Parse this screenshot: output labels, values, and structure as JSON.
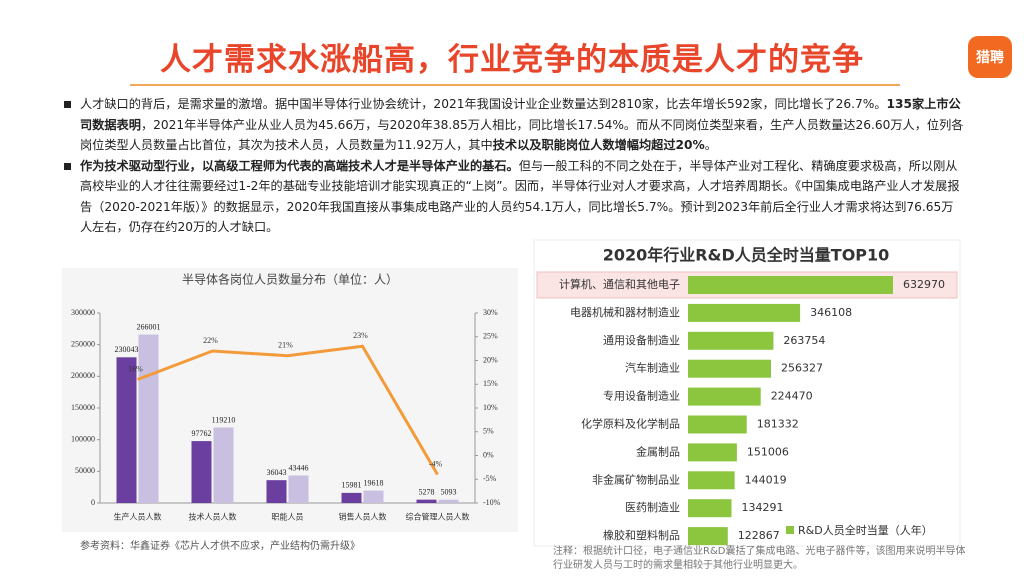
{
  "header": {
    "title": "人才需求水涨船高，行业竞争的本质是人才的竞争",
    "logo": "猎聘"
  },
  "paragraphs": [
    [
      {
        "text": "人才缺口的背后，是需求量的激增。据中国半导体行业协会统计，2021年我国设计业企业数量达到2810家，比去年增长592家，同比增长了26.7%。",
        "bold": false
      },
      {
        "text": "135家上市公司数据表明",
        "bold": true
      },
      {
        "text": "，2021年半导体产业从业人员为45.66万，与2020年38.85万人相比，同比增长17.54%。而从不同岗位类型来看，生产人员数量达26.60万人，位列各岗位类型人员数量占比首位，其次为技术人员，人员数量为11.92万人，其中",
        "bold": false
      },
      {
        "text": "技术以及职能岗位人数增幅均超过20%",
        "bold": true
      },
      {
        "text": "。",
        "bold": false
      }
    ],
    [
      {
        "text": "作为技术驱动型行业，以高级工程师为代表的高端技术人才是半导体产业的基石。",
        "bold": true
      },
      {
        "text": "但与一般工科的不同之处在于，半导体产业对工程化、精确度要求极高，所以刚从高校毕业的人才往往需要经过1-2年的基础专业技能培训才能实现真正的“上岗”。因而，半导体行业对人才要求高，人才培养周期长。《中国集成电路产业人才发展报告（2020-2021年版）》的数据显示，2020年我国直接从事集成电路产业的人员约54.1万人，同比增长5.7%。预计到2023年前后全行业人才需求将达到76.65万人左右，仍存在约20万的人才缺口。",
        "bold": false
      }
    ]
  ],
  "chart_data": [
    {
      "type": "bar-line",
      "title": "半导体各岗位人员数量分布（单位：人）",
      "categories": [
        "生产人员人数",
        "技术人员人数",
        "职能人员",
        "销售人员人数",
        "综合管理人员人数"
      ],
      "series": [
        {
          "color": "#6b3fa0",
          "values": [
            230043,
            97762,
            36043,
            15981,
            5278
          ]
        },
        {
          "color": "#c9bfe0",
          "values": [
            266001,
            119210,
            43446,
            19618,
            5093
          ]
        },
        {
          "type": "line",
          "axis": "y2",
          "color": "#f39a3a",
          "values": [
            16,
            22,
            21,
            23,
            -4
          ],
          "value_labels": [
            "16%",
            "22%",
            "21%",
            "23%",
            "-4%"
          ]
        }
      ],
      "ylim": [
        0,
        300000
      ],
      "yticks": [
        0,
        50000,
        100000,
        150000,
        200000,
        250000,
        300000
      ],
      "y2lim": [
        -10,
        30
      ],
      "y2ticks": [
        {
          "value": -10,
          "label": "-10%"
        },
        {
          "value": -5,
          "label": "-5%"
        },
        {
          "value": 0,
          "label": "0%"
        },
        {
          "value": 5,
          "label": "5%"
        },
        {
          "value": 10,
          "label": "10%"
        },
        {
          "value": 15,
          "label": "15%"
        },
        {
          "value": 20,
          "label": "20%"
        },
        {
          "value": 25,
          "label": "25%"
        },
        {
          "value": 30,
          "label": "30%"
        }
      ],
      "source": "参考资料：华鑫证券《芯片人才供不应求，产业结构仍需升级》"
    },
    {
      "type": "hbar",
      "title": "2020年行业R&D人员全时当量TOP10",
      "categories": [
        "计算机、通信和其他电子",
        "电器机械和器材制造业",
        "通用设备制造业",
        "汽车制造业",
        "专用设备制造业",
        "化学原料及化学制品",
        "金属制品",
        "非金属矿物制品业",
        "医药制造业",
        "橡胶和塑料制品"
      ],
      "series": [
        {
          "name": "R&D人员全时当量（人年）",
          "color": "#8cc63f",
          "values": [
            632970,
            346108,
            263754,
            256327,
            224470,
            181332,
            151006,
            144019,
            134291,
            122867
          ]
        }
      ],
      "highlight": 0,
      "note": "注释：根据统计口径，电子通信业R&D囊括了集成电路、光电子器件等，该图用来说明半导体行业研发人员与工时的需求量相较于其他行业明显更大。"
    }
  ]
}
